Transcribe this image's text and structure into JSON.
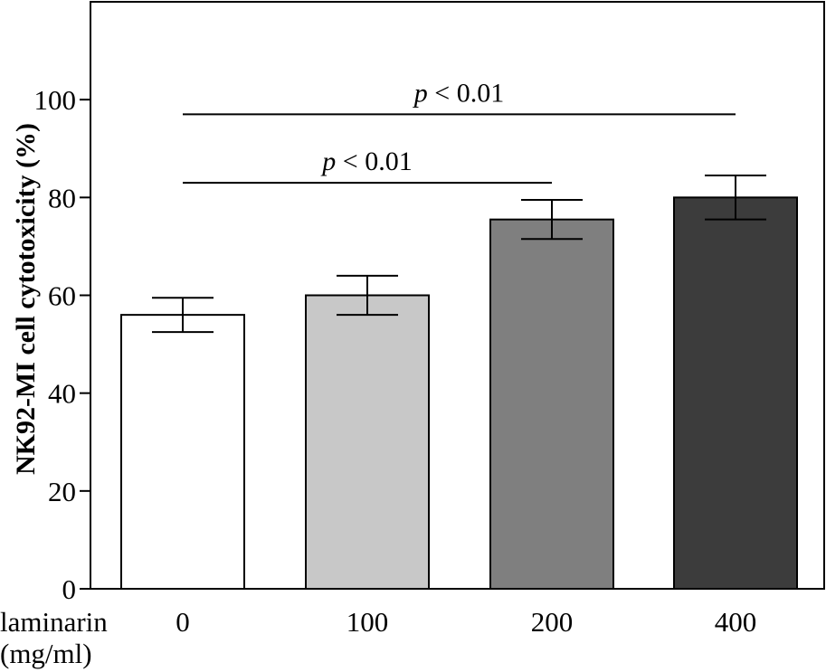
{
  "chart_data": {
    "type": "bar",
    "ylabel": "NK92-MI cell cytotoxicity (%)",
    "xlabel_lines": [
      "laminarin",
      "(mg/ml)"
    ],
    "ylim": [
      0,
      120
    ],
    "yticks": [
      0,
      20,
      40,
      60,
      80,
      100
    ],
    "categories": [
      "0",
      "100",
      "200",
      "400"
    ],
    "values": [
      56,
      60,
      75.5,
      80
    ],
    "errors": [
      3.5,
      4,
      4,
      4.5
    ],
    "bar_colors": [
      "#ffffff",
      "#c8c8c8",
      "#7f7f7f",
      "#3c3c3c"
    ],
    "significance": [
      {
        "from": 0,
        "to": 3,
        "y": 97,
        "label_italic": "p",
        "label_rest": " < 0.01"
      },
      {
        "from": 0,
        "to": 2,
        "y": 83,
        "label_italic": "p",
        "label_rest": " < 0.01"
      }
    ],
    "grid": false,
    "legend": "none"
  }
}
